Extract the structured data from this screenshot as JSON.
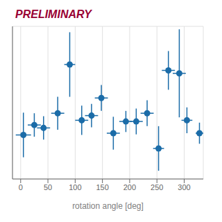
{
  "chart_data": {
    "type": "scatter",
    "annotations": [
      {
        "text": "PRELIMINARY",
        "color": "#990033"
      }
    ],
    "x_label": "rotation angle [deg]",
    "color": "#1b6ca8",
    "marker": "circle",
    "xlim": [
      -15,
      335
    ],
    "ylim": [
      -1.3,
      1.3
    ],
    "xticks": [
      0,
      50,
      100,
      150,
      200,
      250,
      300
    ],
    "yticks": [
      -1,
      -0.5,
      0,
      0.5,
      1
    ],
    "grid": true,
    "tick_labels": "x",
    "points": [
      {
        "x": 5,
        "y": -0.55,
        "xerr": 14,
        "yerr_lo": 0.38,
        "yerr_hi": 0.38
      },
      {
        "x": 25,
        "y": -0.38,
        "xerr": 12,
        "yerr_lo": 0.2,
        "yerr_hi": 0.2
      },
      {
        "x": 42,
        "y": -0.43,
        "xerr": 12,
        "yerr_lo": 0.2,
        "yerr_hi": 0.2
      },
      {
        "x": 68,
        "y": -0.18,
        "xerr": 12,
        "yerr_lo": 0.28,
        "yerr_hi": 0.28
      },
      {
        "x": 90,
        "y": 0.65,
        "xerr": 10,
        "yerr_lo": 0.55,
        "yerr_hi": 0.55
      },
      {
        "x": 112,
        "y": -0.3,
        "xerr": 12,
        "yerr_lo": 0.25,
        "yerr_hi": 0.25
      },
      {
        "x": 130,
        "y": -0.22,
        "xerr": 12,
        "yerr_lo": 0.2,
        "yerr_hi": 0.2
      },
      {
        "x": 148,
        "y": 0.08,
        "xerr": 12,
        "yerr_lo": 0.22,
        "yerr_hi": 0.22
      },
      {
        "x": 170,
        "y": -0.52,
        "xerr": 12,
        "yerr_lo": 0.28,
        "yerr_hi": 0.28
      },
      {
        "x": 193,
        "y": -0.32,
        "xerr": 12,
        "yerr_lo": 0.18,
        "yerr_hi": 0.18
      },
      {
        "x": 212,
        "y": -0.32,
        "xerr": 12,
        "yerr_lo": 0.22,
        "yerr_hi": 0.22
      },
      {
        "x": 232,
        "y": -0.18,
        "xerr": 12,
        "yerr_lo": 0.22,
        "yerr_hi": 0.22
      },
      {
        "x": 253,
        "y": -0.78,
        "xerr": 10,
        "yerr_lo": 0.38,
        "yerr_hi": 0.38
      },
      {
        "x": 271,
        "y": 0.55,
        "xerr": 12,
        "yerr_lo": 0.33,
        "yerr_hi": 0.33
      },
      {
        "x": 291,
        "y": 0.5,
        "xerr": 12,
        "yerr_lo": 0.75,
        "yerr_hi": 0.75
      },
      {
        "x": 305,
        "y": -0.3,
        "xerr": 10,
        "yerr_lo": 0.22,
        "yerr_hi": 0.22
      },
      {
        "x": 328,
        "y": -0.52,
        "xerr": 7,
        "yerr_lo": 0.18,
        "yerr_hi": 0.18
      }
    ]
  }
}
